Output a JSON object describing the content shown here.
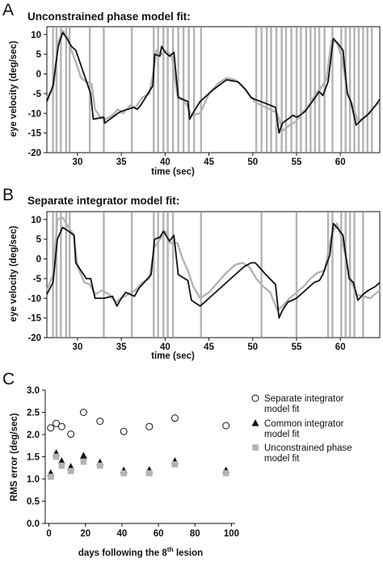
{
  "figure": {
    "panels": [
      {
        "letter": "A",
        "title": "Unconstrained phase model fit:"
      },
      {
        "letter": "B",
        "title": "Separate integrator model fit:"
      },
      {
        "letter": "C",
        "title": ""
      }
    ]
  },
  "colors": {
    "model": "#111111",
    "data": "#b3b3b3"
  },
  "chart_data": [
    {
      "type": "line",
      "title": "Unconstrained phase model fit:",
      "xlabel": "time (sec)",
      "ylabel": "eye velocity (deg/sec)",
      "xlim": [
        26.5,
        64.5
      ],
      "ylim": [
        -20,
        12
      ],
      "xticks": [
        30,
        35,
        40,
        45,
        50,
        55,
        60
      ],
      "yticks": [
        10,
        5,
        0,
        -5,
        -10,
        -15,
        -20
      ],
      "series": [
        {
          "role": "model fit",
          "color": "#111111",
          "x": [
            26.5,
            27.2,
            27.8,
            28.3,
            28.8,
            29.3,
            29.8,
            31.5,
            31.8,
            33.0,
            33.1,
            34.0,
            34.6,
            35.0,
            36.4,
            36.8,
            37.2,
            38.6,
            38.8,
            39.4,
            39.6,
            40.0,
            40.5,
            41.0,
            41.5,
            42.6,
            42.8,
            43.3,
            44.0,
            45.5,
            47.0,
            48.3,
            49.2,
            49.8,
            50.3,
            51.5,
            52.6,
            53.0,
            53.4,
            54.6,
            55.0,
            55.4,
            56.0,
            57.6,
            58.0,
            58.6,
            59.2,
            59.8,
            60.3,
            60.8,
            61.2,
            61.8,
            62.5,
            63.3,
            64.0,
            64.5
          ],
          "y": [
            -7,
            -3,
            7,
            10.5,
            9,
            7,
            6,
            -5,
            -11.5,
            -11,
            -12.5,
            -11,
            -10,
            -9.5,
            -8.5,
            -9,
            -8,
            -3,
            5,
            4.5,
            7,
            5.5,
            4.5,
            5.5,
            -6,
            -7,
            -11.5,
            -9.5,
            -7,
            -4,
            -1.5,
            -2,
            -4,
            -6,
            -6.5,
            -7.5,
            -8.5,
            -15,
            -12.5,
            -10.5,
            -11,
            -10.5,
            -9.5,
            -4.5,
            -5.5,
            -2,
            9,
            7.5,
            6,
            -5,
            -7,
            -13,
            -11.5,
            -10,
            -8,
            -6.5
          ]
        },
        {
          "role": "data",
          "color": "#b3b3b3",
          "x": [
            26.5,
            27.2,
            27.8,
            28.3,
            28.8,
            29.3,
            29.8,
            30.4,
            31.0,
            31.6,
            32.0,
            32.6,
            33.2,
            34.0,
            34.6,
            35.2,
            36.0,
            36.6,
            37.4,
            38.2,
            38.7,
            39.0,
            39.6,
            40.2,
            40.8,
            41.4,
            42.0,
            42.5,
            43.0,
            44.0,
            45.0,
            46.0,
            47.0,
            48.0,
            48.8,
            49.5,
            50.2,
            51.0,
            52.0,
            52.8,
            53.4,
            54.2,
            55.0,
            55.6,
            56.4,
            57.2,
            57.8,
            58.4,
            59.0,
            59.6,
            60.2,
            60.8,
            61.4,
            62.0,
            62.8,
            63.6,
            64.5
          ],
          "y": [
            -6,
            -4,
            8,
            11,
            9.5,
            6,
            3,
            -1,
            -2,
            -2.5,
            -9,
            -11,
            -11.5,
            -10.5,
            -9,
            -10,
            -8,
            -8.5,
            -6,
            -5,
            1,
            6,
            5,
            6,
            4,
            -5.5,
            -6.5,
            -8,
            -10.5,
            -10,
            -5,
            -2.5,
            -1,
            -1.5,
            -3,
            -5,
            -7,
            -8,
            -9,
            -10,
            -14.5,
            -13,
            -12,
            -10,
            -8,
            -5,
            -3.5,
            -1.5,
            8.5,
            8,
            4,
            -5,
            -8,
            -12,
            -11,
            -9,
            -7
          ]
        }
      ],
      "data_spikes_x": [
        27.2,
        27.6,
        28.1,
        28.7,
        29.1,
        31.4,
        33.0,
        36.2,
        38.7,
        39.2,
        39.8,
        40.3,
        40.9,
        41.5,
        42.1,
        42.7,
        43.3,
        44.1,
        50.4,
        51.0,
        51.6,
        52.1,
        52.7,
        53.3,
        53.8,
        54.4,
        55.0,
        55.5,
        56.1,
        56.6,
        57.1,
        57.6,
        58.2,
        59.1,
        60.1,
        60.6,
        61.1,
        61.6,
        62.1,
        62.6,
        63.1,
        63.6
      ]
    },
    {
      "type": "line",
      "title": "Separate integrator model fit:",
      "xlabel": "time (sec)",
      "ylabel": "eye velocity (deg/sec)",
      "xlim": [
        26.5,
        64.5
      ],
      "ylim": [
        -20,
        12
      ],
      "xticks": [
        30,
        35,
        40,
        45,
        50,
        55,
        60
      ],
      "yticks": [
        10,
        5,
        0,
        -5,
        -10,
        -15,
        -20
      ],
      "series": [
        {
          "role": "model fit",
          "color": "#111111",
          "x": [
            26.5,
            27.2,
            27.7,
            28.3,
            29.0,
            29.6,
            29.8,
            31.0,
            31.5,
            32.0,
            33.0,
            34.0,
            34.5,
            35.0,
            35.5,
            36.5,
            37.0,
            38.4,
            38.8,
            39.4,
            39.8,
            40.5,
            41.0,
            41.5,
            42.6,
            43.0,
            44.0,
            45.0,
            46.0,
            47.0,
            48.0,
            49.0,
            49.8,
            50.3,
            51.5,
            52.6,
            53.0,
            53.4,
            54.0,
            55.0,
            56.0,
            57.0,
            57.6,
            58.0,
            58.8,
            59.2,
            59.8,
            60.3,
            61.0,
            61.5,
            62.0,
            62.6,
            63.2,
            64.0,
            64.5
          ],
          "y": [
            -9,
            -6,
            5,
            8,
            7,
            6,
            -1,
            -5,
            -5,
            -10,
            -10,
            -9.5,
            -12,
            -10,
            -8.5,
            -9.5,
            -7.5,
            -4,
            5,
            5.5,
            7,
            4.5,
            6,
            -4,
            -5.5,
            -10.5,
            -12,
            -10,
            -8,
            -6,
            -4,
            -2,
            -1,
            -1,
            -4,
            -6.5,
            -15,
            -13,
            -11,
            -10,
            -8,
            -6,
            -5.5,
            -4,
            1,
            9,
            7.5,
            6,
            -5,
            -6,
            -10.5,
            -9,
            -8,
            -7,
            -6
          ]
        },
        {
          "role": "data",
          "color": "#b3b3b3",
          "x": [
            26.5,
            27.2,
            27.7,
            28.3,
            29.0,
            29.6,
            30.0,
            30.8,
            31.4,
            32.0,
            32.8,
            33.6,
            34.4,
            35.0,
            35.8,
            36.6,
            37.4,
            38.2,
            38.8,
            39.4,
            40.0,
            40.6,
            41.4,
            42.0,
            42.6,
            43.2,
            44.0,
            45.0,
            46.0,
            47.0,
            48.0,
            48.8,
            49.6,
            50.4,
            51.2,
            52.0,
            52.8,
            53.4,
            54.2,
            55.0,
            55.8,
            56.6,
            57.4,
            58.2,
            59.0,
            59.6,
            60.2,
            61.0,
            61.8,
            62.6,
            63.4,
            64.5
          ],
          "y": [
            -8,
            -4,
            10,
            10.5,
            8,
            6,
            -2,
            -6,
            -6.5,
            -9,
            -8,
            -9,
            -11,
            -10,
            -9,
            -8,
            -6,
            -5,
            3,
            5,
            7,
            4,
            4,
            0,
            -3,
            -7,
            -10,
            -8.5,
            -6,
            -3.5,
            -1.5,
            -1,
            -2,
            -5,
            -7,
            -8.5,
            -13,
            -12,
            -10,
            -8.5,
            -7,
            -5,
            -3.5,
            -3,
            6,
            9,
            5,
            -4,
            -9,
            -9.5,
            -10,
            -8
          ]
        }
      ],
      "data_spikes_x": [
        27.2,
        27.6,
        28.1,
        28.7,
        29.1,
        33.0,
        36.2,
        38.7,
        39.2,
        39.8,
        40.3,
        40.9,
        44.1,
        51.0,
        55.0,
        58.6,
        59.1,
        60.1,
        60.6,
        61.1,
        61.6,
        62.6
      ]
    },
    {
      "type": "scatter",
      "title": "",
      "xlabel": "days following the 8th lesion",
      "xlabel_main": "days following the 8",
      "xlabel_sup": "th",
      "xlabel_tail": " lesion",
      "ylabel": "RMS error (deg/sec)",
      "xlim": [
        -2,
        102
      ],
      "ylim": [
        0,
        3
      ],
      "xticks": [
        0,
        20,
        40,
        60,
        80,
        100
      ],
      "yticks": [
        0.0,
        0.5,
        1.0,
        1.5,
        2.0,
        2.5,
        3.0
      ],
      "legend_position": "right",
      "series": [
        {
          "name": "Separate integrator\nmodel fit",
          "legend_lines": [
            "Separate integrator",
            "model fit"
          ],
          "marker": "open-circle",
          "x": [
            1,
            4,
            7,
            12,
            19,
            28,
            41,
            55,
            69,
            97
          ],
          "y": [
            2.15,
            2.25,
            2.18,
            2.01,
            2.5,
            2.3,
            2.07,
            2.18,
            2.37,
            2.2
          ]
        },
        {
          "name": "Common integrator\nmodel fit",
          "legend_lines": [
            "Common integrator",
            "model fit"
          ],
          "marker": "filled-triangle",
          "x": [
            1,
            4,
            7,
            12,
            19,
            28,
            41,
            55,
            69,
            97
          ],
          "y": [
            1.13,
            1.58,
            1.4,
            1.27,
            1.52,
            1.37,
            1.19,
            1.2,
            1.4,
            1.19
          ]
        },
        {
          "name": "Unconstrained phase\nmodel fit",
          "legend_lines": [
            "Unconstrained phase",
            "model fit"
          ],
          "marker": "gray-square",
          "x": [
            1,
            4,
            7,
            12,
            19,
            28,
            41,
            55,
            69,
            97
          ],
          "y": [
            1.05,
            1.5,
            1.3,
            1.18,
            1.39,
            1.3,
            1.13,
            1.13,
            1.33,
            1.13
          ]
        }
      ]
    }
  ]
}
